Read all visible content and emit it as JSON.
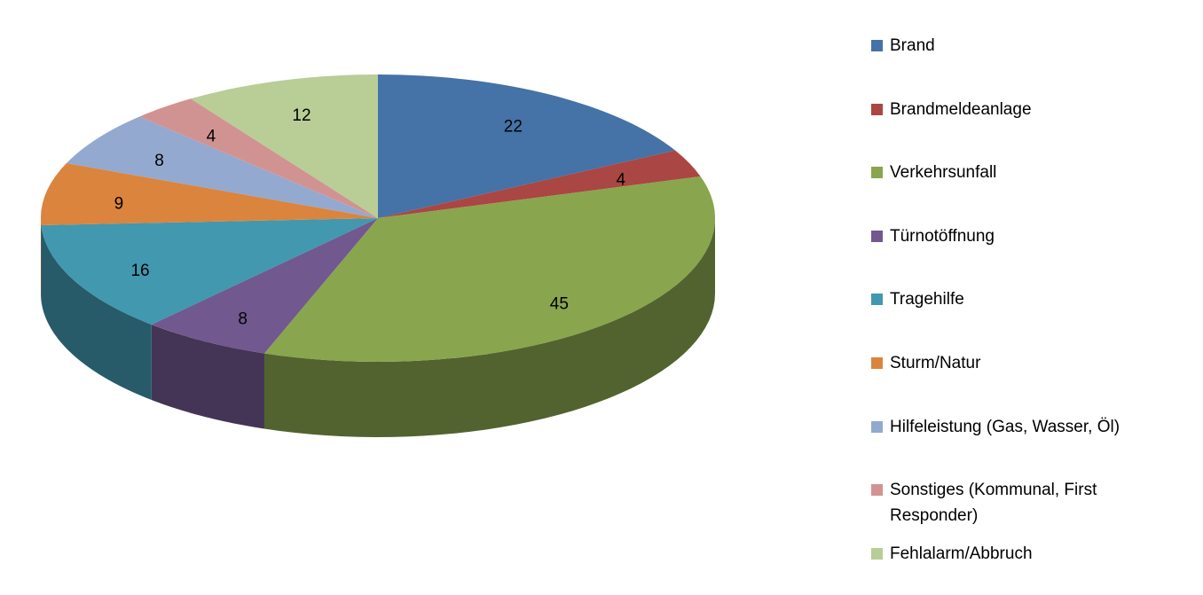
{
  "chart_data": {
    "type": "pie",
    "categories": [
      "Brand",
      "Brandmeldeanlage",
      "Verkehrsunfall",
      "Türnotöffnung",
      "Tragehilfe",
      "Sturm/Natur",
      "Hilfeleistung (Gas, Wasser, Öl)",
      "Sonstiges (Kommunal, First Responder)",
      "Fehlalarm/Abbruch"
    ],
    "values": [
      22,
      4,
      45,
      8,
      16,
      9,
      8,
      4,
      12
    ],
    "colors": [
      "#4572a7",
      "#aa4643",
      "#89a54e",
      "#71588f",
      "#4198af",
      "#db843d",
      "#93a9cf",
      "#d19392",
      "#b9cd96"
    ],
    "legend": "right"
  }
}
